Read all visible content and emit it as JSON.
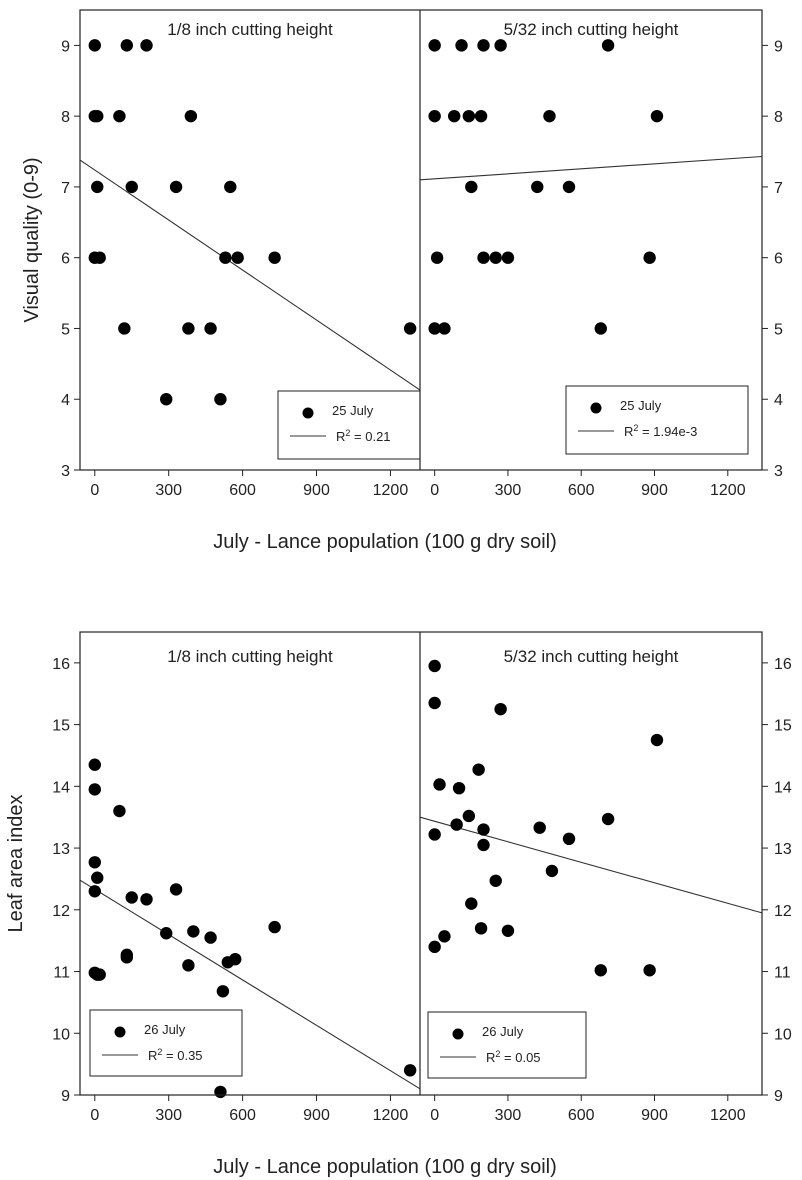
{
  "colors": {
    "points": "#000000",
    "line": "#333333",
    "frame": "#222222",
    "legend_line_bottom_right": "#999999"
  },
  "chart_data": [
    {
      "type": "scatter",
      "ylabel": "Visual quality (0-9)",
      "xlabel": "July - Lance population (100 g dry soil)",
      "ylim": [
        3,
        9.5
      ],
      "yticks": [
        "3",
        "4",
        "5",
        "6",
        "7",
        "8",
        "9"
      ],
      "grid": false,
      "panels": [
        {
          "title": "1/8 inch cutting height",
          "xlim": [
            -60,
            1320
          ],
          "xticks": [
            "0",
            "300",
            "600",
            "900",
            "1200"
          ],
          "legend": {
            "position": "bottom-right",
            "marker_label": "25 July",
            "line_label_prefix": "R",
            "line_label_sup": "2",
            "line_label_suffix": " = 0.21"
          },
          "points": [
            [
              0,
              9
            ],
            [
              130,
              9
            ],
            [
              210,
              9
            ],
            [
              0,
              8
            ],
            [
              10,
              8
            ],
            [
              100,
              8
            ],
            [
              390,
              8
            ],
            [
              10,
              7
            ],
            [
              150,
              7
            ],
            [
              330,
              7
            ],
            [
              550,
              7
            ],
            [
              0,
              6
            ],
            [
              20,
              6
            ],
            [
              530,
              6
            ],
            [
              580,
              6
            ],
            [
              730,
              6
            ],
            [
              120,
              5
            ],
            [
              380,
              5
            ],
            [
              470,
              5
            ],
            [
              1280,
              5
            ],
            [
              290,
              4
            ],
            [
              510,
              4
            ]
          ],
          "fit": [
            [
              -60,
              7.38
            ],
            [
              1320,
              4.13
            ]
          ]
        },
        {
          "title": "5/32 inch cutting height",
          "xlim": [
            -60,
            1340
          ],
          "xticks": [
            "0",
            "300",
            "600",
            "900",
            "1200"
          ],
          "legend": {
            "position": "bottom-right",
            "marker_label": "25 July",
            "line_label_prefix": "R",
            "line_label_sup": "2",
            "line_label_suffix": " = 1.94e-3"
          },
          "points": [
            [
              0,
              9
            ],
            [
              110,
              9
            ],
            [
              200,
              9
            ],
            [
              270,
              9
            ],
            [
              710,
              9
            ],
            [
              0,
              8
            ],
            [
              80,
              8
            ],
            [
              140,
              8
            ],
            [
              190,
              8
            ],
            [
              470,
              8
            ],
            [
              910,
              8
            ],
            [
              150,
              7
            ],
            [
              420,
              7
            ],
            [
              550,
              7
            ],
            [
              10,
              6
            ],
            [
              200,
              6
            ],
            [
              250,
              6
            ],
            [
              300,
              6
            ],
            [
              880,
              6
            ],
            [
              0,
              5
            ],
            [
              40,
              5
            ],
            [
              680,
              5
            ]
          ],
          "fit": [
            [
              -60,
              7.1
            ],
            [
              1340,
              7.43
            ]
          ]
        }
      ]
    },
    {
      "type": "scatter",
      "ylabel": "Leaf area index",
      "xlabel": "July - Lance population (100 g dry soil)",
      "ylim": [
        9,
        16.5
      ],
      "yticks": [
        "9",
        "10",
        "11",
        "12",
        "13",
        "14",
        "15",
        "16"
      ],
      "grid": false,
      "panels": [
        {
          "title": "1/8 inch cutting height",
          "xlim": [
            -60,
            1320
          ],
          "xticks": [
            "0",
            "300",
            "600",
            "900",
            "1200"
          ],
          "legend": {
            "position": "bottom-left",
            "marker_label": "26 July",
            "line_label_prefix": "R",
            "line_label_sup": "2",
            "line_label_suffix": " = 0.35"
          },
          "points": [
            [
              0,
              14.35
            ],
            [
              0,
              13.95
            ],
            [
              100,
              13.6
            ],
            [
              0,
              12.77
            ],
            [
              10,
              12.52
            ],
            [
              0,
              12.3
            ],
            [
              150,
              12.2
            ],
            [
              210,
              12.17
            ],
            [
              330,
              12.33
            ],
            [
              290,
              11.62
            ],
            [
              400,
              11.65
            ],
            [
              470,
              11.55
            ],
            [
              730,
              11.72
            ],
            [
              130,
              11.27
            ],
            [
              130,
              11.23
            ],
            [
              380,
              11.1
            ],
            [
              540,
              11.15
            ],
            [
              570,
              11.2
            ],
            [
              0,
              10.98
            ],
            [
              20,
              10.95
            ],
            [
              10,
              10.95
            ],
            [
              520,
              10.68
            ],
            [
              1280,
              9.4
            ],
            [
              510,
              9.05
            ]
          ],
          "fit": [
            [
              -60,
              12.48
            ],
            [
              1320,
              9.1
            ]
          ]
        },
        {
          "title": "5/32 inch cutting height",
          "xlim": [
            -60,
            1340
          ],
          "xticks": [
            "0",
            "300",
            "600",
            "900",
            "1200"
          ],
          "legend": {
            "position": "bottom-left",
            "marker_label": "26 July",
            "line_label_prefix": "R",
            "line_label_sup": "2",
            "line_label_suffix": " = 0.05"
          },
          "points": [
            [
              0,
              15.95
            ],
            [
              0,
              15.35
            ],
            [
              270,
              15.25
            ],
            [
              910,
              14.75
            ],
            [
              180,
              14.27
            ],
            [
              20,
              14.03
            ],
            [
              100,
              13.97
            ],
            [
              140,
              13.52
            ],
            [
              90,
              13.38
            ],
            [
              200,
              13.3
            ],
            [
              430,
              13.33
            ],
            [
              710,
              13.47
            ],
            [
              0,
              13.22
            ],
            [
              200,
              13.05
            ],
            [
              550,
              13.15
            ],
            [
              480,
              12.63
            ],
            [
              250,
              12.47
            ],
            [
              150,
              12.1
            ],
            [
              190,
              11.7
            ],
            [
              300,
              11.66
            ],
            [
              40,
              11.57
            ],
            [
              0,
              11.4
            ],
            [
              680,
              11.02
            ],
            [
              880,
              11.02
            ]
          ],
          "fit": [
            [
              -60,
              13.5
            ],
            [
              1340,
              11.95
            ]
          ]
        }
      ]
    }
  ]
}
